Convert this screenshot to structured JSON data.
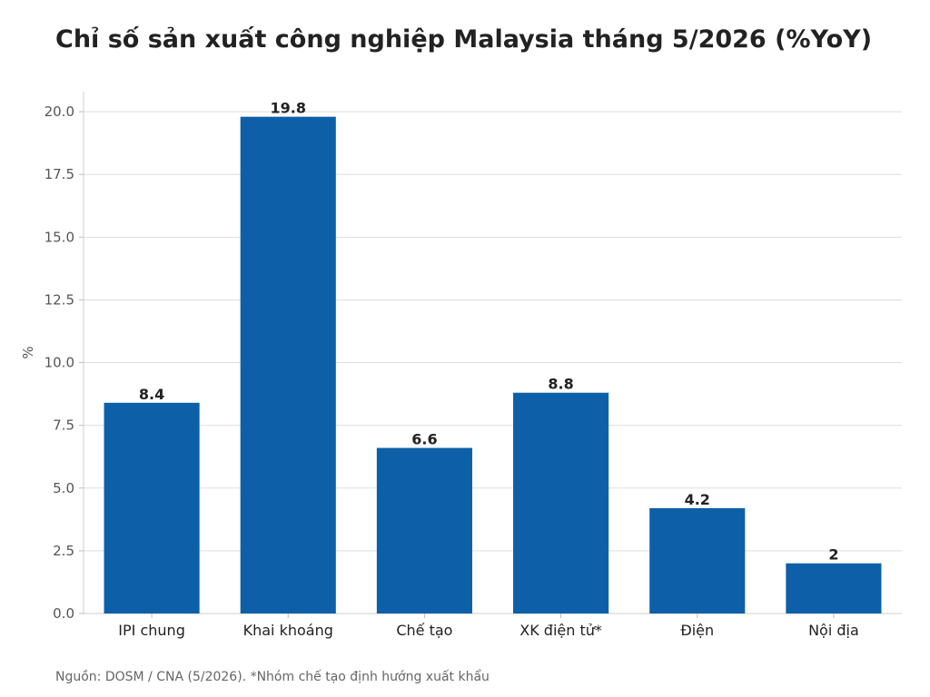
{
  "title": "Chỉ số sản xuất công nghiệp Malaysia tháng 5/2026 (%YoY)",
  "footer": "Nguồn: DOSM / CNA (5/2026). *Nhóm chế tạo định hướng xuất khẩu",
  "colors": {
    "bar": "#0d60a8",
    "grid": "#dddddd",
    "text": "#222222",
    "axis_text": "#555555"
  },
  "chart_data": {
    "type": "bar",
    "title": "Chỉ số sản xuất công nghiệp Malaysia tháng 5/2026 (%YoY)",
    "categories": [
      "IPI chung",
      "Khai khoáng",
      "Chế tạo",
      "XK điện tử*",
      "Điện",
      "Nội địa"
    ],
    "values": [
      8.4,
      19.8,
      6.6,
      8.8,
      4.2,
      2
    ],
    "data_labels": [
      "8.4",
      "19.8",
      "6.6",
      "8.8",
      "4.2",
      "2"
    ],
    "xlabel": "",
    "ylabel": "%",
    "ylim": [
      0,
      20.8
    ],
    "yticks": [
      "0.0",
      "2.5",
      "5.0",
      "7.5",
      "10.0",
      "12.5",
      "15.0",
      "17.5",
      "20.0"
    ],
    "grid": true,
    "legend": "none"
  }
}
